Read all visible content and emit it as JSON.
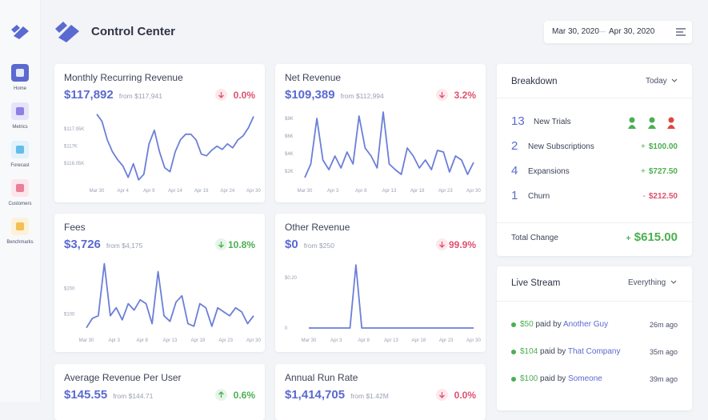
{
  "header": {
    "title": "Control Center",
    "date_start": "Mar 30, 2020",
    "date_sep": "—",
    "date_end": "Apr 30, 2020"
  },
  "sidebar": [
    {
      "label": "Home"
    },
    {
      "label": "Metrics"
    },
    {
      "label": "Forecast"
    },
    {
      "label": "Customers"
    },
    {
      "label": "Benchmarks"
    }
  ],
  "cards": [
    {
      "title": "Monthly Recurring Revenue",
      "value": "$117,892",
      "from": "from $117,941",
      "change": "0.0%",
      "chart": {
        "type": "line",
        "color": "#6b7fd8",
        "values": [
          118770,
          118370,
          117350,
          116690,
          116250,
          115900,
          115280,
          116030,
          115140,
          115450,
          117130,
          117880,
          116690,
          115810,
          115590,
          116690,
          117350,
          117660,
          117660,
          117350,
          116560,
          116470,
          116780,
          117000,
          116820,
          117130,
          116910,
          117350,
          117570,
          118020,
          118640
        ],
        "ylim": [
          115000,
          118800
        ],
        "yticks": [
          {
            "value": 117950,
            "label": "$117.95K"
          },
          {
            "value": 117000,
            "label": "$117K"
          },
          {
            "value": 116050,
            "label": "$116.05K"
          }
        ],
        "x_labels": [
          "Mar 30",
          "Apr 4",
          "Apr 9",
          "Apr 14",
          "Apr 19",
          "Apr 24",
          "Apr 30"
        ]
      }
    },
    {
      "title": "Net Revenue",
      "value": "$109,389",
      "from": "from $112,994",
      "change": "3.2%",
      "chart": {
        "type": "line",
        "color": "#6b7fd8",
        "values": [
          1270,
          2820,
          8000,
          3270,
          2180,
          3730,
          2360,
          4180,
          2820,
          8270,
          4640,
          3730,
          2360,
          8730,
          2820,
          2180,
          1640,
          4640,
          3730,
          2360,
          3270,
          2180,
          4360,
          4180,
          1910,
          3730,
          3270,
          1640,
          3000
        ],
        "ylim": [
          1000,
          9000
        ],
        "yticks": [
          {
            "value": 8000,
            "label": "$8K"
          },
          {
            "value": 6000,
            "label": "$6K"
          },
          {
            "value": 4000,
            "label": "$4K"
          },
          {
            "value": 2000,
            "label": "$2K"
          }
        ],
        "x_labels": [
          "Mar 30",
          "Apr 3",
          "Apr 8",
          "Apr 13",
          "Apr 18",
          "Apr 23",
          "Apr 30"
        ]
      }
    },
    {
      "title": "Fees",
      "value": "$3,726",
      "from": "from $4,175",
      "change": "10.8%",
      "chart": {
        "type": "line",
        "color": "#6b7fd8",
        "values": [
          47,
          84,
          94,
          297,
          94,
          125,
          78,
          141,
          116,
          156,
          141,
          63,
          266,
          94,
          72,
          147,
          172,
          63,
          53,
          141,
          125,
          53,
          125,
          109,
          94,
          125,
          109,
          63,
          94
        ],
        "ylim": [
          15,
          330
        ],
        "yticks": [
          {
            "value": 200,
            "label": "$200"
          },
          {
            "value": 100,
            "label": "$100"
          }
        ],
        "x_labels": [
          "Mar 30",
          "Apr 3",
          "Apr 8",
          "Apr 13",
          "Apr 18",
          "Apr 23",
          "Apr 30"
        ]
      }
    },
    {
      "title": "Other Revenue",
      "value": "$0",
      "from": "from $250",
      "change": "99.9%",
      "chart": {
        "type": "line",
        "color": "#6b7fd8",
        "values": [
          0,
          0,
          0,
          0,
          0,
          0,
          0,
          0,
          0.25,
          0,
          0,
          0,
          0,
          0,
          0,
          0,
          0,
          0,
          0,
          0,
          0,
          0,
          0,
          0,
          0,
          0,
          0,
          0,
          0
        ],
        "ylim": [
          0,
          0.26
        ],
        "yticks": [
          {
            "value": 0.2,
            "label": "$0.20"
          },
          0
        ],
        "x_labels": [
          "Mar 30",
          "Apr 3",
          "Apr 8",
          "Apr 13",
          "Apr 18",
          "Apr 23",
          "Apr 30"
        ]
      }
    },
    {
      "title": "Average Revenue Per User",
      "value": "$145.55",
      "from": "from $144.71",
      "change": "0.6%"
    },
    {
      "title": "Annual Run Rate",
      "value": "$1,414,705",
      "from": "from $1.42M",
      "change": "0.0%"
    }
  ],
  "breakdown": {
    "title": "Breakdown",
    "period": "Today",
    "rows": [
      {
        "count": 13,
        "label": "New Trials"
      },
      {
        "count": 2,
        "label": "New Subscriptions",
        "sign": "+",
        "amount": "$100.00"
      },
      {
        "count": 4,
        "label": "Expansions",
        "sign": "+",
        "amount": "$727.50"
      },
      {
        "count": 1,
        "label": "Churn",
        "sign": "-",
        "amount": "$212.50"
      }
    ],
    "total": {
      "label": "Total Change",
      "sign": "+",
      "amount": "$615.00"
    }
  },
  "live_stream": {
    "title": "Live Stream",
    "filter": "Everything",
    "items": [
      {
        "amount": "$50",
        "text": "paid by",
        "customer": "Another Guy",
        "time": "26m ago"
      },
      {
        "amount": "$104",
        "text": "paid by",
        "customer": "That Company",
        "time": "35m ago"
      },
      {
        "amount": "$100",
        "text": "paid by",
        "customer": "Someone",
        "time": "39m ago"
      }
    ]
  }
}
